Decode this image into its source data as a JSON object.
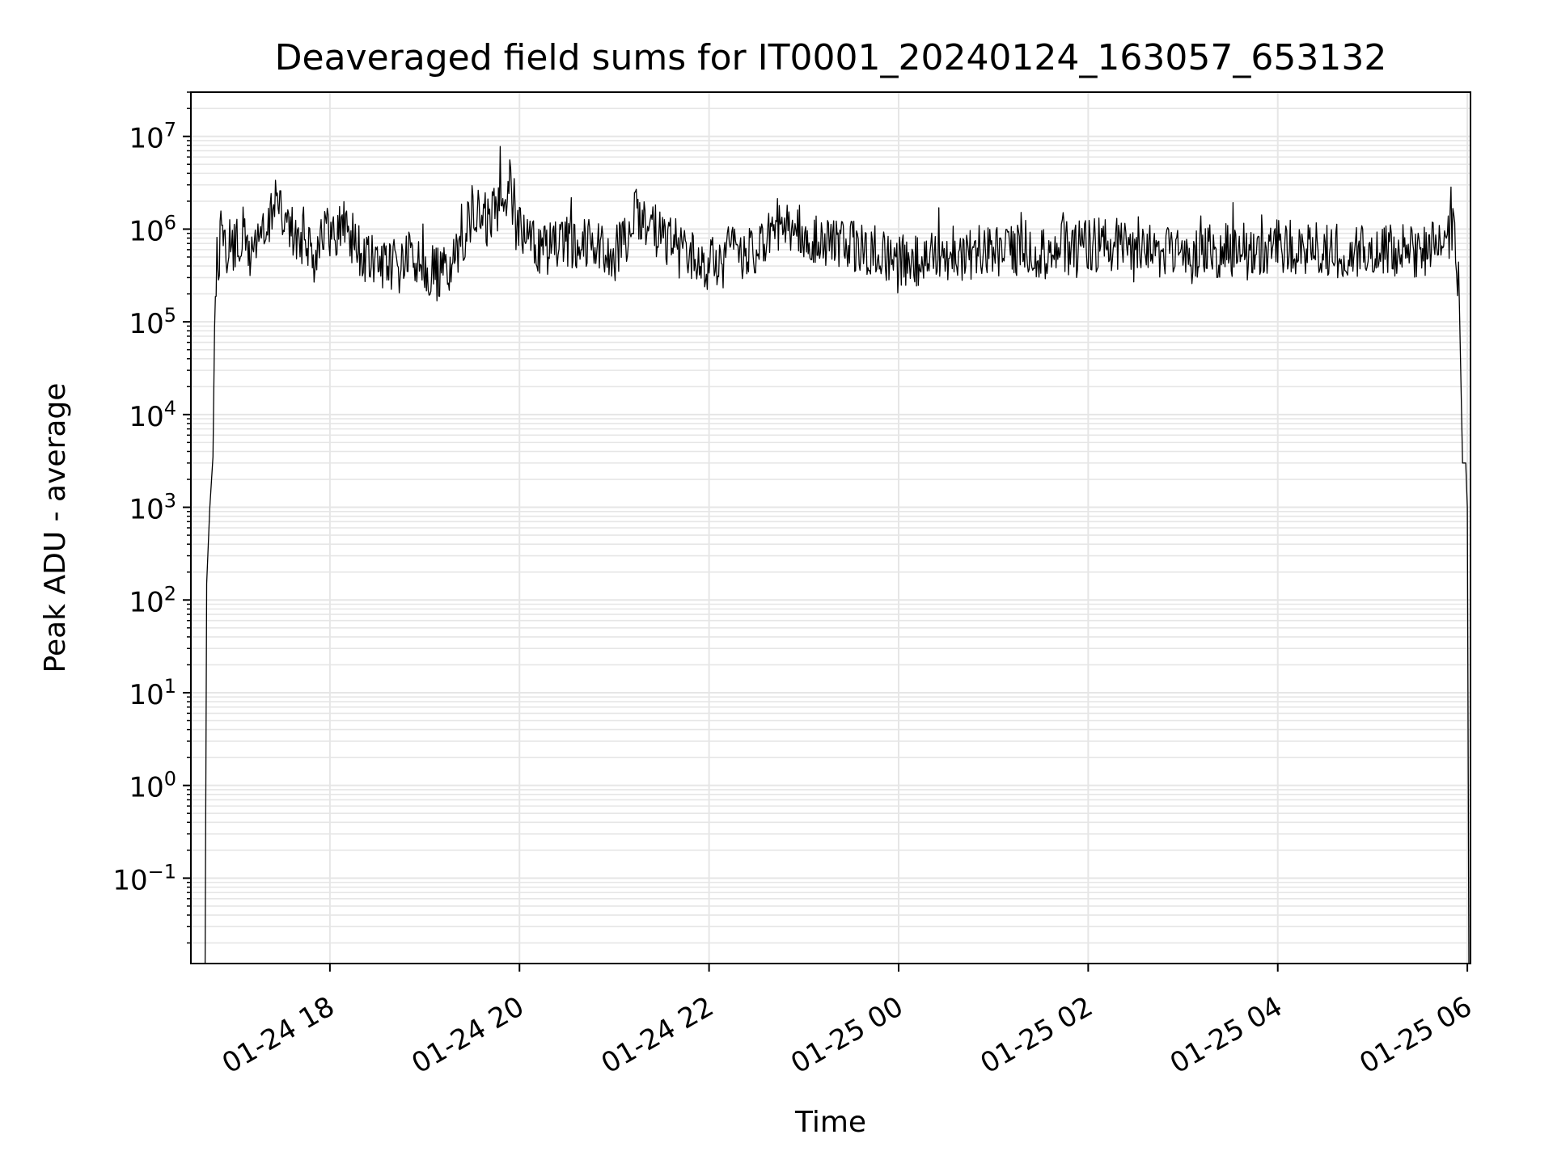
{
  "chart_data": {
    "type": "line",
    "title": "Deaveraged field sums for IT0001_20240124_163057_653132",
    "xlabel": "Time",
    "ylabel": "Peak ADU - average",
    "yscale": "log",
    "ylim": [
      0.012,
      30000000
    ],
    "xlim": [
      "2024-01-24 16:32",
      "2024-01-25 06:02"
    ],
    "grid": true,
    "line_color": "#000000",
    "grid_color": "#e6e6e6",
    "x_ticks": [
      {
        "value": "2024-01-24 18:00",
        "label": "01-24 18"
      },
      {
        "value": "2024-01-24 20:00",
        "label": "01-24 20"
      },
      {
        "value": "2024-01-24 22:00",
        "label": "01-24 22"
      },
      {
        "value": "2024-01-25 00:00",
        "label": "01-25 00"
      },
      {
        "value": "2024-01-25 02:00",
        "label": "01-25 02"
      },
      {
        "value": "2024-01-25 04:00",
        "label": "01-25 04"
      },
      {
        "value": "2024-01-25 06:00",
        "label": "01-25 06"
      }
    ],
    "y_ticks": [
      {
        "value": 0.1,
        "base": "10",
        "exp": "−1"
      },
      {
        "value": 1,
        "base": "10",
        "exp": "0"
      },
      {
        "value": 10,
        "base": "10",
        "exp": "1"
      },
      {
        "value": 100,
        "base": "10",
        "exp": "2"
      },
      {
        "value": 1000,
        "base": "10",
        "exp": "3"
      },
      {
        "value": 10000,
        "base": "10",
        "exp": "4"
      },
      {
        "value": 100000,
        "base": "10",
        "exp": "5"
      },
      {
        "value": 1000000,
        "base": "10",
        "exp": "6"
      },
      {
        "value": 10000000,
        "base": "10",
        "exp": "7"
      }
    ],
    "series": [
      {
        "x": [
          "2024-01-24 16:41",
          "2024-01-24 16:42",
          "2024-01-24 16:44",
          "2024-01-24 16:46",
          "2024-01-24 16:47",
          "2024-01-24 16:49",
          "2024-01-24 16:51",
          "2024-01-24 16:53",
          "2024-01-24 16:56",
          "2024-01-24 17:00",
          "2024-01-24 17:05",
          "2024-01-24 17:10",
          "2024-01-24 17:15",
          "2024-01-24 17:20",
          "2024-01-24 17:25",
          "2024-01-24 17:30",
          "2024-01-24 17:35",
          "2024-01-24 17:40",
          "2024-01-24 17:45",
          "2024-01-24 17:50",
          "2024-01-24 17:55",
          "2024-01-24 18:00",
          "2024-01-24 18:10",
          "2024-01-24 18:20",
          "2024-01-24 18:30",
          "2024-01-24 18:40",
          "2024-01-24 18:50",
          "2024-01-24 19:00",
          "2024-01-24 19:10",
          "2024-01-24 19:20",
          "2024-01-24 19:30",
          "2024-01-24 19:40",
          "2024-01-24 19:50",
          "2024-01-24 20:00",
          "2024-01-24 20:15",
          "2024-01-24 20:30",
          "2024-01-24 20:45",
          "2024-01-24 21:00",
          "2024-01-24 21:15",
          "2024-01-24 21:30",
          "2024-01-24 21:45",
          "2024-01-24 22:00",
          "2024-01-24 22:15",
          "2024-01-24 22:30",
          "2024-01-24 22:45",
          "2024-01-24 23:00",
          "2024-01-24 23:20",
          "2024-01-24 23:40",
          "2024-01-25 00:00",
          "2024-01-25 00:30",
          "2024-01-25 01:00",
          "2024-01-25 01:30",
          "2024-01-25 02:00",
          "2024-01-25 02:30",
          "2024-01-25 03:00",
          "2024-01-25 03:30",
          "2024-01-25 04:00",
          "2024-01-25 04:30",
          "2024-01-25 05:00",
          "2024-01-25 05:30",
          "2024-01-25 05:45",
          "2024-01-25 05:52",
          "2024-01-25 05:55",
          "2024-01-25 05:57",
          "2024-01-25 05:59",
          "2024-01-25 06:00",
          "2024-01-25 06:01"
        ],
        "y": [
          0.012,
          150,
          1000,
          3500,
          100000,
          400000,
          800000,
          500000,
          700000,
          600000,
          900000,
          500000,
          1000000,
          700000,
          2500000,
          1500000,
          1000000,
          700000,
          900000,
          500000,
          1100000,
          800000,
          1200000,
          500000,
          400000,
          350000,
          500000,
          400000,
          300000,
          500000,
          1500000,
          1200000,
          2500000,
          900000,
          600000,
          700000,
          800000,
          500000,
          1500000,
          800000,
          600000,
          400000,
          600000,
          500000,
          1200000,
          900000,
          700000,
          600000,
          450000,
          500000,
          600000,
          550000,
          700000,
          600000,
          550000,
          600000,
          650000,
          600000,
          550000,
          600000,
          700000,
          1200000,
          150000,
          3000,
          3000,
          1000,
          0.012
        ]
      }
    ],
    "annotations": "dense noise band roughly 2e5–2e6 between 16:50 and 05:52, with spikes up to ~1e7 around 19:30–23:00 and near 05:00 and 05:40"
  }
}
